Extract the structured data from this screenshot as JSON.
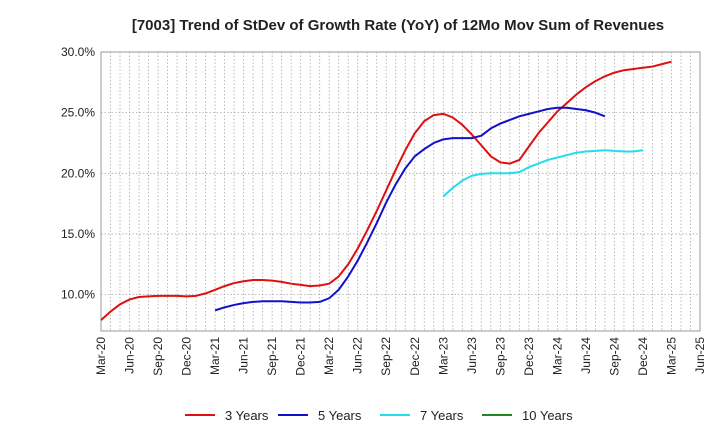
{
  "chart_data": {
    "type": "line",
    "title": "[7003]  Trend of StDev of Growth Rate (YoY) of 12Mo Mov Sum of Revenues",
    "xlabel": "",
    "ylabel": "",
    "y_ticks": [
      "10.0%",
      "15.0%",
      "20.0%",
      "25.0%",
      "30.0%"
    ],
    "y_tick_values": [
      10,
      15,
      20,
      25,
      30
    ],
    "ylim": [
      7,
      30
    ],
    "x_ticks": [
      "Mar-20",
      "Jun-20",
      "Sep-20",
      "Dec-20",
      "Mar-21",
      "Jun-21",
      "Sep-21",
      "Dec-21",
      "Mar-22",
      "Jun-22",
      "Sep-22",
      "Dec-22",
      "Mar-23",
      "Jun-23",
      "Sep-23",
      "Dec-23",
      "Mar-24",
      "Jun-24",
      "Sep-24",
      "Dec-24",
      "Mar-25",
      "Jun-25"
    ],
    "x_months": [
      "2020-03",
      "2020-04",
      "2020-05",
      "2020-06",
      "2020-07",
      "2020-08",
      "2020-09",
      "2020-10",
      "2020-11",
      "2020-12",
      "2021-01",
      "2021-02",
      "2021-03",
      "2021-04",
      "2021-05",
      "2021-06",
      "2021-07",
      "2021-08",
      "2021-09",
      "2021-10",
      "2021-11",
      "2021-12",
      "2022-01",
      "2022-02",
      "2022-03",
      "2022-04",
      "2022-05",
      "2022-06",
      "2022-07",
      "2022-08",
      "2022-09",
      "2022-10",
      "2022-11",
      "2022-12",
      "2023-01",
      "2023-02",
      "2023-03",
      "2023-04",
      "2023-05",
      "2023-06",
      "2023-07",
      "2023-08",
      "2023-09",
      "2023-10",
      "2023-11",
      "2023-12",
      "2024-01",
      "2024-02",
      "2024-03",
      "2024-04",
      "2024-05",
      "2024-06",
      "2024-07",
      "2024-08",
      "2024-09",
      "2024-10",
      "2024-11",
      "2024-12",
      "2025-01",
      "2025-02",
      "2025-03",
      "2025-04",
      "2025-05",
      "2025-06"
    ],
    "grid": true,
    "legend_position": "bottom",
    "series": [
      {
        "name": "3 Years",
        "color": "#dd1111",
        "start_index": 0,
        "values": [
          7.9,
          8.6,
          9.2,
          9.6,
          9.8,
          9.85,
          9.9,
          9.9,
          9.9,
          9.85,
          9.9,
          10.1,
          10.4,
          10.7,
          10.95,
          11.1,
          11.2,
          11.2,
          11.15,
          11.05,
          10.9,
          10.8,
          10.7,
          10.75,
          10.9,
          11.5,
          12.5,
          13.8,
          15.3,
          16.9,
          18.6,
          20.3,
          21.9,
          23.3,
          24.3,
          24.8,
          24.9,
          24.6,
          24.0,
          23.2,
          22.3,
          21.4,
          20.9,
          20.8,
          21.1,
          22.2,
          23.3,
          24.2,
          25.1,
          25.8,
          26.5,
          27.1,
          27.6,
          28.0,
          28.3,
          28.5,
          28.6,
          28.7,
          28.8,
          29.0,
          29.2
        ]
      },
      {
        "name": "5 Years",
        "color": "#1111cc",
        "start_index": 12,
        "values": [
          8.7,
          8.95,
          9.15,
          9.3,
          9.4,
          9.45,
          9.45,
          9.45,
          9.4,
          9.35,
          9.35,
          9.4,
          9.7,
          10.4,
          11.5,
          12.8,
          14.3,
          15.9,
          17.6,
          19.1,
          20.4,
          21.4,
          22.0,
          22.5,
          22.8,
          22.9,
          22.9,
          22.9,
          23.1,
          23.7,
          24.1,
          24.4,
          24.7,
          24.9,
          25.1,
          25.3,
          25.4,
          25.4,
          25.3,
          25.2,
          25.0,
          24.7
        ]
      },
      {
        "name": "7 Years",
        "color": "#22ddee",
        "start_index": 36,
        "values": [
          18.1,
          18.8,
          19.4,
          19.8,
          19.95,
          20.0,
          20.0,
          20.0,
          20.1,
          20.5,
          20.8,
          21.1,
          21.3,
          21.5,
          21.7,
          21.8,
          21.85,
          21.9,
          21.85,
          21.8,
          21.8,
          21.9
        ]
      },
      {
        "name": "10 Years",
        "color": "#228822",
        "start_index": 0,
        "values": []
      }
    ]
  }
}
